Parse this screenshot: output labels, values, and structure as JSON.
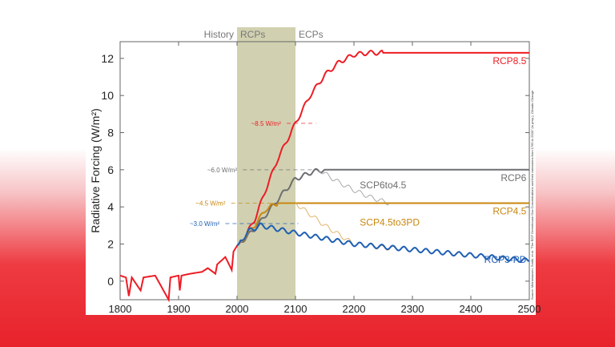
{
  "chart_data": {
    "type": "line",
    "ylabel": "Radiative Forcing (W/m²)",
    "xlim": [
      1800,
      2500
    ],
    "ylim": [
      -1,
      12.9
    ],
    "xticks": [
      1800,
      1900,
      2000,
      2100,
      2200,
      2300,
      2400,
      2500
    ],
    "yticks": [
      0,
      2,
      4,
      6,
      8,
      10,
      12
    ],
    "periods": [
      {
        "label": "History",
        "range": [
          1800,
          2000
        ]
      },
      {
        "label": "RCPs",
        "range": [
          2000,
          2100
        ]
      },
      {
        "label": "ECPs",
        "range": [
          2100,
          2500
        ]
      }
    ],
    "series": [
      {
        "name": "RCP8.5",
        "color": "#ee1c25",
        "x": [
          1800,
          1810,
          1815,
          1820,
          1835,
          1840,
          1860,
          1883,
          1886,
          1900,
          1902,
          1905,
          1920,
          1940,
          1950,
          1963,
          1966,
          1980,
          1991,
          1994,
          2000,
          2010,
          2030,
          2050,
          2070,
          2100,
          2125,
          2150,
          2175,
          2200,
          2225,
          2250,
          2500
        ],
        "y": [
          0.3,
          0.2,
          -0.8,
          0.2,
          -0.5,
          0.2,
          0.3,
          -1,
          0.2,
          0.3,
          -0.5,
          0.3,
          0.4,
          0.5,
          0.7,
          0.4,
          0.9,
          1.3,
          0.6,
          1.6,
          1.9,
          2.2,
          3.3,
          5.0,
          6.6,
          8.5,
          10.0,
          11.1,
          11.8,
          12.2,
          12.3,
          12.3,
          12.3
        ]
      },
      {
        "name": "RCP6",
        "color": "#6d6e70",
        "x": [
          2000,
          2030,
          2060,
          2080,
          2100,
          2130,
          2150,
          2500
        ],
        "y": [
          1.9,
          2.8,
          4.0,
          4.8,
          5.5,
          5.9,
          6.0,
          6.0
        ]
      },
      {
        "name": "SCP6to4.5",
        "color": "#a7a9ac",
        "x": [
          2140,
          2170,
          2200,
          2230,
          2260
        ],
        "y": [
          6.0,
          5.4,
          4.9,
          4.5,
          4.2
        ]
      },
      {
        "name": "RCP4.5",
        "color": "#c8870f",
        "x": [
          2000,
          2030,
          2050,
          2070,
          2500
        ],
        "y": [
          1.9,
          3.0,
          3.9,
          4.2,
          4.2
        ]
      },
      {
        "name": "SCP4.5to3PD",
        "color": "#e0b46a",
        "x": [
          2100,
          2150,
          2200,
          2250,
          2300
        ],
        "y": [
          4.2,
          3.0,
          2.0,
          1.8,
          1.7
        ]
      },
      {
        "name": "RCP3-PD",
        "color": "#1e5fb4",
        "x": [
          2000,
          2020,
          2040,
          2100,
          2200,
          2300,
          2400,
          2500
        ],
        "y": [
          1.9,
          2.7,
          3.0,
          2.6,
          2.0,
          1.7,
          1.4,
          1.1
        ]
      }
    ],
    "labels": [
      {
        "text": "RCP8.5",
        "x": 2495,
        "y": 12.3,
        "color": "#ee1c25"
      },
      {
        "text": "RCP6",
        "x": 2495,
        "y": 6.0,
        "color": "#6d6e70"
      },
      {
        "text": "SCP6to4.5",
        "x": 2210,
        "y": 5.0,
        "color": "#6d6e70"
      },
      {
        "text": "RCP4.5",
        "x": 2495,
        "y": 4.2,
        "color": "#c8870f"
      },
      {
        "text": "SCP4.5to3PD",
        "x": 2210,
        "y": 3.0,
        "color": "#c8870f"
      },
      {
        "text": "RCP3-PD",
        "x": 2495,
        "y": 1.6,
        "color": "#1e5fb4"
      }
    ],
    "annotations": [
      {
        "text": "~8.5 W/m²",
        "y": 8.5,
        "from": 2085,
        "to": 2135,
        "textx": 2075,
        "color": "#ee1c25"
      },
      {
        "text": "~6.0 W/m²",
        "y": 6.0,
        "from": 2010,
        "to": 2140,
        "textx": 2000,
        "color": "#6d6e70"
      },
      {
        "text": "~4.5 W/m²",
        "y": 4.2,
        "from": 1990,
        "to": 2100,
        "textx": 1980,
        "color": "#c8870f"
      },
      {
        "text": "~3.0 W/m²",
        "y": 3.1,
        "from": 1980,
        "to": 2105,
        "textx": 1970,
        "color": "#1e5fb4"
      }
    ],
    "source": "Source: Meinshausen, Smith, et al. \"The RCP Greenhouse Gas Concentrations and their extensions from 1765 to 2500\" (in prep.), Climatic Change"
  }
}
